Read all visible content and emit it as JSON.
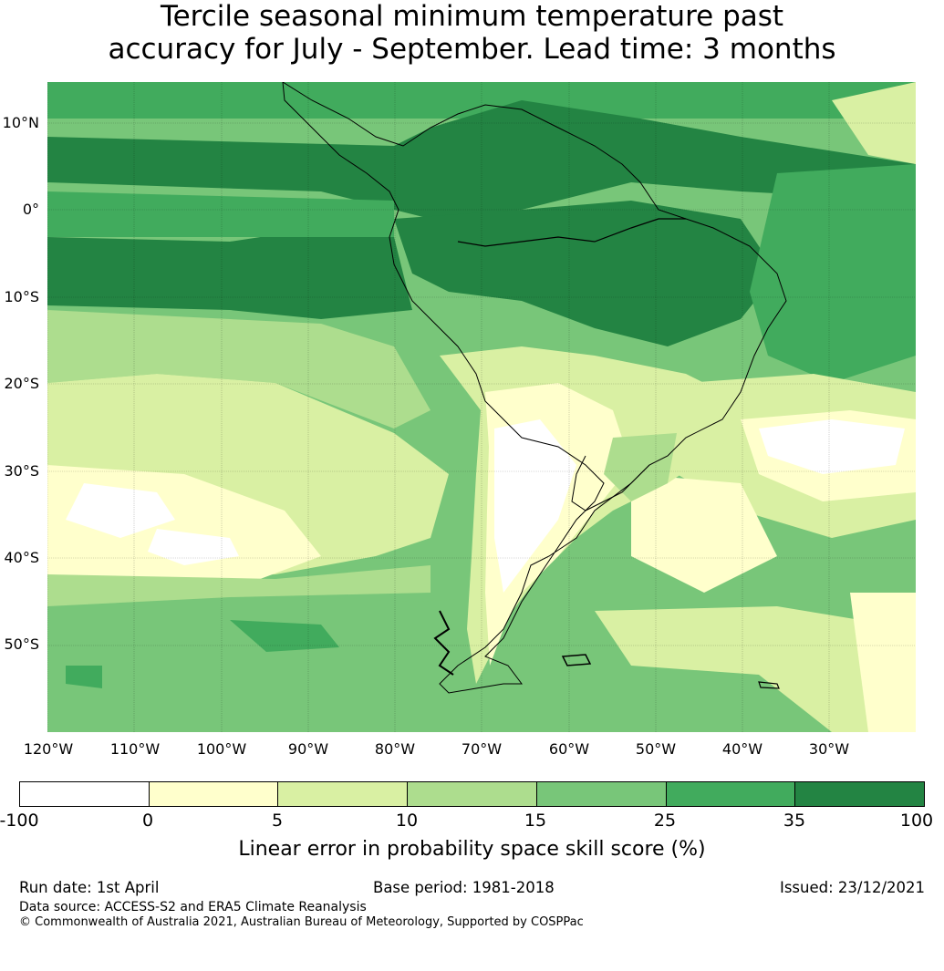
{
  "title": {
    "line1": "Tercile seasonal minimum temperature past",
    "line2": "accuracy for July - September. Lead time: 3 months"
  },
  "map": {
    "region": "South America and surrounding oceans",
    "lat_ticks": [
      "10°N",
      "0°",
      "10°S",
      "20°S",
      "30°S",
      "40°S",
      "50°S"
    ],
    "lon_ticks": [
      "120°W",
      "110°W",
      "100°W",
      "90°W",
      "80°W",
      "70°W",
      "60°W",
      "50°W",
      "40°W",
      "30°W"
    ]
  },
  "legend": {
    "title": "Linear error in probability space skill score (%)",
    "ticks": [
      "-100",
      "0",
      "5",
      "10",
      "15",
      "25",
      "35",
      "100"
    ],
    "bins": [
      {
        "range": "-100 to 0",
        "color": "#ffffff"
      },
      {
        "range": "0 to 5",
        "color": "#ffffcc"
      },
      {
        "range": "5 to 10",
        "color": "#d9f0a3"
      },
      {
        "range": "10 to 15",
        "color": "#addd8e"
      },
      {
        "range": "15 to 25",
        "color": "#78c679"
      },
      {
        "range": "25 to 35",
        "color": "#41ab5d"
      },
      {
        "range": "35 to 100",
        "color": "#238443"
      }
    ]
  },
  "footer": {
    "run_date": "Run date: 1st April",
    "base_period": "Base period: 1981-2018",
    "issued": "Issued: 23/12/2021",
    "data_source": "Data source: ACCESS-S2 and ERA5 Climate Reanalysis",
    "copyright": "© Commonwealth of Australia 2021, Australian Bureau of Meteorology, Supported by COSPPac"
  }
}
